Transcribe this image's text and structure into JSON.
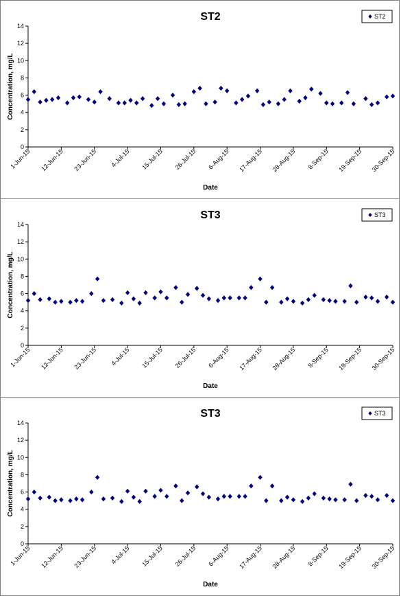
{
  "chart_data": [
    {
      "type": "scatter",
      "title": "ST2",
      "xlabel": "Date",
      "ylabel": "Concentration, mg/L",
      "ylim": [
        0,
        14
      ],
      "yticks": [
        0,
        2,
        4,
        6,
        8,
        10,
        12,
        14
      ],
      "xlim": [
        "2015-06-01",
        "2015-09-30"
      ],
      "xticks": [
        "1-Jun-15",
        "12-Jun-15",
        "23-Jun-15",
        "4-Jul-15",
        "15-Jul-15",
        "26-Jul-15",
        "6-Aug-15",
        "17-Aug-15",
        "28-Aug-15",
        "8-Sep-15",
        "19-Sep-15",
        "30-Sep-15"
      ],
      "legend": "top-right",
      "grid": false,
      "color": "#00007f",
      "series": [
        {
          "name": "ST2",
          "points": [
            [
              "2015-06-01",
              5.5
            ],
            [
              "2015-06-03",
              6.4
            ],
            [
              "2015-06-05",
              5.2
            ],
            [
              "2015-06-07",
              5.4
            ],
            [
              "2015-06-09",
              5.5
            ],
            [
              "2015-06-11",
              5.7
            ],
            [
              "2015-06-14",
              5.1
            ],
            [
              "2015-06-16",
              5.7
            ],
            [
              "2015-06-18",
              5.8
            ],
            [
              "2015-06-21",
              5.5
            ],
            [
              "2015-06-23",
              5.2
            ],
            [
              "2015-06-25",
              6.4
            ],
            [
              "2015-06-28",
              5.6
            ],
            [
              "2015-07-01",
              5.1
            ],
            [
              "2015-07-03",
              5.1
            ],
            [
              "2015-07-05",
              5.4
            ],
            [
              "2015-07-07",
              5.1
            ],
            [
              "2015-07-09",
              5.6
            ],
            [
              "2015-07-12",
              4.8
            ],
            [
              "2015-07-14",
              5.6
            ],
            [
              "2015-07-16",
              5.0
            ],
            [
              "2015-07-19",
              6.0
            ],
            [
              "2015-07-21",
              4.9
            ],
            [
              "2015-07-23",
              5.0
            ],
            [
              "2015-07-26",
              6.4
            ],
            [
              "2015-07-28",
              6.8
            ],
            [
              "2015-07-30",
              5.0
            ],
            [
              "2015-08-02",
              5.2
            ],
            [
              "2015-08-04",
              6.8
            ],
            [
              "2015-08-06",
              6.5
            ],
            [
              "2015-08-09",
              5.1
            ],
            [
              "2015-08-11",
              5.5
            ],
            [
              "2015-08-13",
              5.9
            ],
            [
              "2015-08-16",
              6.5
            ],
            [
              "2015-08-18",
              4.9
            ],
            [
              "2015-08-20",
              5.2
            ],
            [
              "2015-08-23",
              5.0
            ],
            [
              "2015-08-25",
              5.5
            ],
            [
              "2015-08-27",
              6.5
            ],
            [
              "2015-08-30",
              5.3
            ],
            [
              "2015-09-01",
              5.7
            ],
            [
              "2015-09-03",
              6.7
            ],
            [
              "2015-09-06",
              6.2
            ],
            [
              "2015-09-08",
              5.1
            ],
            [
              "2015-09-10",
              5.0
            ],
            [
              "2015-09-13",
              5.1
            ],
            [
              "2015-09-15",
              6.3
            ],
            [
              "2015-09-17",
              5.0
            ],
            [
              "2015-09-21",
              5.6
            ],
            [
              "2015-09-23",
              4.9
            ],
            [
              "2015-09-25",
              5.1
            ],
            [
              "2015-09-28",
              5.8
            ],
            [
              "2015-09-30",
              5.9
            ]
          ]
        }
      ]
    },
    {
      "type": "scatter",
      "title": "ST3",
      "xlabel": "Date",
      "ylabel": "Concentration, mg/L",
      "ylim": [
        0,
        14
      ],
      "yticks": [
        0,
        2,
        4,
        6,
        8,
        10,
        12,
        14
      ],
      "xlim": [
        "2015-06-01",
        "2015-09-30"
      ],
      "xticks": [
        "1-Jun-15",
        "12-Jun-15",
        "23-Jun-15",
        "4-Jul-15",
        "15-Jul-15",
        "26-Jul-15",
        "6-Aug-15",
        "17-Aug-15",
        "28-Aug-15",
        "8-Sep-15",
        "19-Sep-15",
        "30-Sep-15"
      ],
      "legend": "top-right",
      "grid": false,
      "color": "#00007f",
      "series": [
        {
          "name": "ST3",
          "points": [
            [
              "2015-06-01",
              5.2
            ],
            [
              "2015-06-03",
              6.0
            ],
            [
              "2015-06-05",
              5.3
            ],
            [
              "2015-06-08",
              5.4
            ],
            [
              "2015-06-10",
              5.0
            ],
            [
              "2015-06-12",
              5.1
            ],
            [
              "2015-06-15",
              5.0
            ],
            [
              "2015-06-17",
              5.2
            ],
            [
              "2015-06-19",
              5.1
            ],
            [
              "2015-06-22",
              6.0
            ],
            [
              "2015-06-24",
              7.7
            ],
            [
              "2015-06-26",
              5.2
            ],
            [
              "2015-06-29",
              5.3
            ],
            [
              "2015-07-02",
              4.9
            ],
            [
              "2015-07-04",
              6.1
            ],
            [
              "2015-07-06",
              5.4
            ],
            [
              "2015-07-08",
              4.9
            ],
            [
              "2015-07-10",
              6.1
            ],
            [
              "2015-07-13",
              5.5
            ],
            [
              "2015-07-15",
              6.2
            ],
            [
              "2015-07-17",
              5.5
            ],
            [
              "2015-07-20",
              6.7
            ],
            [
              "2015-07-22",
              5.0
            ],
            [
              "2015-07-24",
              5.9
            ],
            [
              "2015-07-27",
              6.6
            ],
            [
              "2015-07-29",
              5.8
            ],
            [
              "2015-07-31",
              5.4
            ],
            [
              "2015-08-03",
              5.2
            ],
            [
              "2015-08-05",
              5.5
            ],
            [
              "2015-08-07",
              5.5
            ],
            [
              "2015-08-10",
              5.5
            ],
            [
              "2015-08-12",
              5.5
            ],
            [
              "2015-08-14",
              6.7
            ],
            [
              "2015-08-17",
              7.7
            ],
            [
              "2015-08-19",
              5.0
            ],
            [
              "2015-08-21",
              6.7
            ],
            [
              "2015-08-24",
              5.0
            ],
            [
              "2015-08-26",
              5.4
            ],
            [
              "2015-08-28",
              5.1
            ],
            [
              "2015-08-31",
              4.9
            ],
            [
              "2015-09-02",
              5.3
            ],
            [
              "2015-09-04",
              5.8
            ],
            [
              "2015-09-07",
              5.3
            ],
            [
              "2015-09-09",
              5.2
            ],
            [
              "2015-09-11",
              5.1
            ],
            [
              "2015-09-14",
              5.1
            ],
            [
              "2015-09-16",
              6.9
            ],
            [
              "2015-09-18",
              5.0
            ],
            [
              "2015-09-21",
              5.6
            ],
            [
              "2015-09-23",
              5.5
            ],
            [
              "2015-09-25",
              5.1
            ],
            [
              "2015-09-28",
              5.6
            ],
            [
              "2015-09-30",
              5.0
            ]
          ]
        }
      ]
    },
    {
      "type": "scatter",
      "title": "ST3",
      "xlabel": "Date",
      "ylabel": "Concentration, mg/L",
      "ylim": [
        0,
        14
      ],
      "yticks": [
        0,
        2,
        4,
        6,
        8,
        10,
        12,
        14
      ],
      "xlim": [
        "2015-06-01",
        "2015-09-30"
      ],
      "xticks": [
        "1-Jun-15",
        "12-Jun-15",
        "23-Jun-15",
        "4-Jul-15",
        "15-Jul-15",
        "26-Jul-15",
        "6-Aug-15",
        "17-Aug-15",
        "28-Aug-15",
        "8-Sep-15",
        "19-Sep-15",
        "30-Sep-15"
      ],
      "legend": "top-right",
      "grid": false,
      "color": "#00007f",
      "series": [
        {
          "name": "ST3",
          "points": [
            [
              "2015-06-01",
              5.2
            ],
            [
              "2015-06-03",
              6.0
            ],
            [
              "2015-06-05",
              5.3
            ],
            [
              "2015-06-08",
              5.4
            ],
            [
              "2015-06-10",
              5.0
            ],
            [
              "2015-06-12",
              5.1
            ],
            [
              "2015-06-15",
              5.0
            ],
            [
              "2015-06-17",
              5.2
            ],
            [
              "2015-06-19",
              5.1
            ],
            [
              "2015-06-22",
              6.0
            ],
            [
              "2015-06-24",
              7.7
            ],
            [
              "2015-06-26",
              5.2
            ],
            [
              "2015-06-29",
              5.3
            ],
            [
              "2015-07-02",
              4.9
            ],
            [
              "2015-07-04",
              6.1
            ],
            [
              "2015-07-06",
              5.4
            ],
            [
              "2015-07-08",
              4.9
            ],
            [
              "2015-07-10",
              6.1
            ],
            [
              "2015-07-13",
              5.5
            ],
            [
              "2015-07-15",
              6.2
            ],
            [
              "2015-07-17",
              5.5
            ],
            [
              "2015-07-20",
              6.7
            ],
            [
              "2015-07-22",
              5.0
            ],
            [
              "2015-07-24",
              5.9
            ],
            [
              "2015-07-27",
              6.6
            ],
            [
              "2015-07-29",
              5.8
            ],
            [
              "2015-07-31",
              5.4
            ],
            [
              "2015-08-03",
              5.2
            ],
            [
              "2015-08-05",
              5.5
            ],
            [
              "2015-08-07",
              5.5
            ],
            [
              "2015-08-10",
              5.5
            ],
            [
              "2015-08-12",
              5.5
            ],
            [
              "2015-08-14",
              6.7
            ],
            [
              "2015-08-17",
              7.7
            ],
            [
              "2015-08-19",
              5.0
            ],
            [
              "2015-08-21",
              6.7
            ],
            [
              "2015-08-24",
              5.0
            ],
            [
              "2015-08-26",
              5.4
            ],
            [
              "2015-08-28",
              5.1
            ],
            [
              "2015-08-31",
              4.9
            ],
            [
              "2015-09-02",
              5.3
            ],
            [
              "2015-09-04",
              5.8
            ],
            [
              "2015-09-07",
              5.3
            ],
            [
              "2015-09-09",
              5.2
            ],
            [
              "2015-09-11",
              5.1
            ],
            [
              "2015-09-14",
              5.1
            ],
            [
              "2015-09-16",
              6.9
            ],
            [
              "2015-09-18",
              5.0
            ],
            [
              "2015-09-21",
              5.6
            ],
            [
              "2015-09-23",
              5.5
            ],
            [
              "2015-09-25",
              5.1
            ],
            [
              "2015-09-28",
              5.6
            ],
            [
              "2015-09-30",
              5.0
            ]
          ]
        }
      ]
    }
  ]
}
